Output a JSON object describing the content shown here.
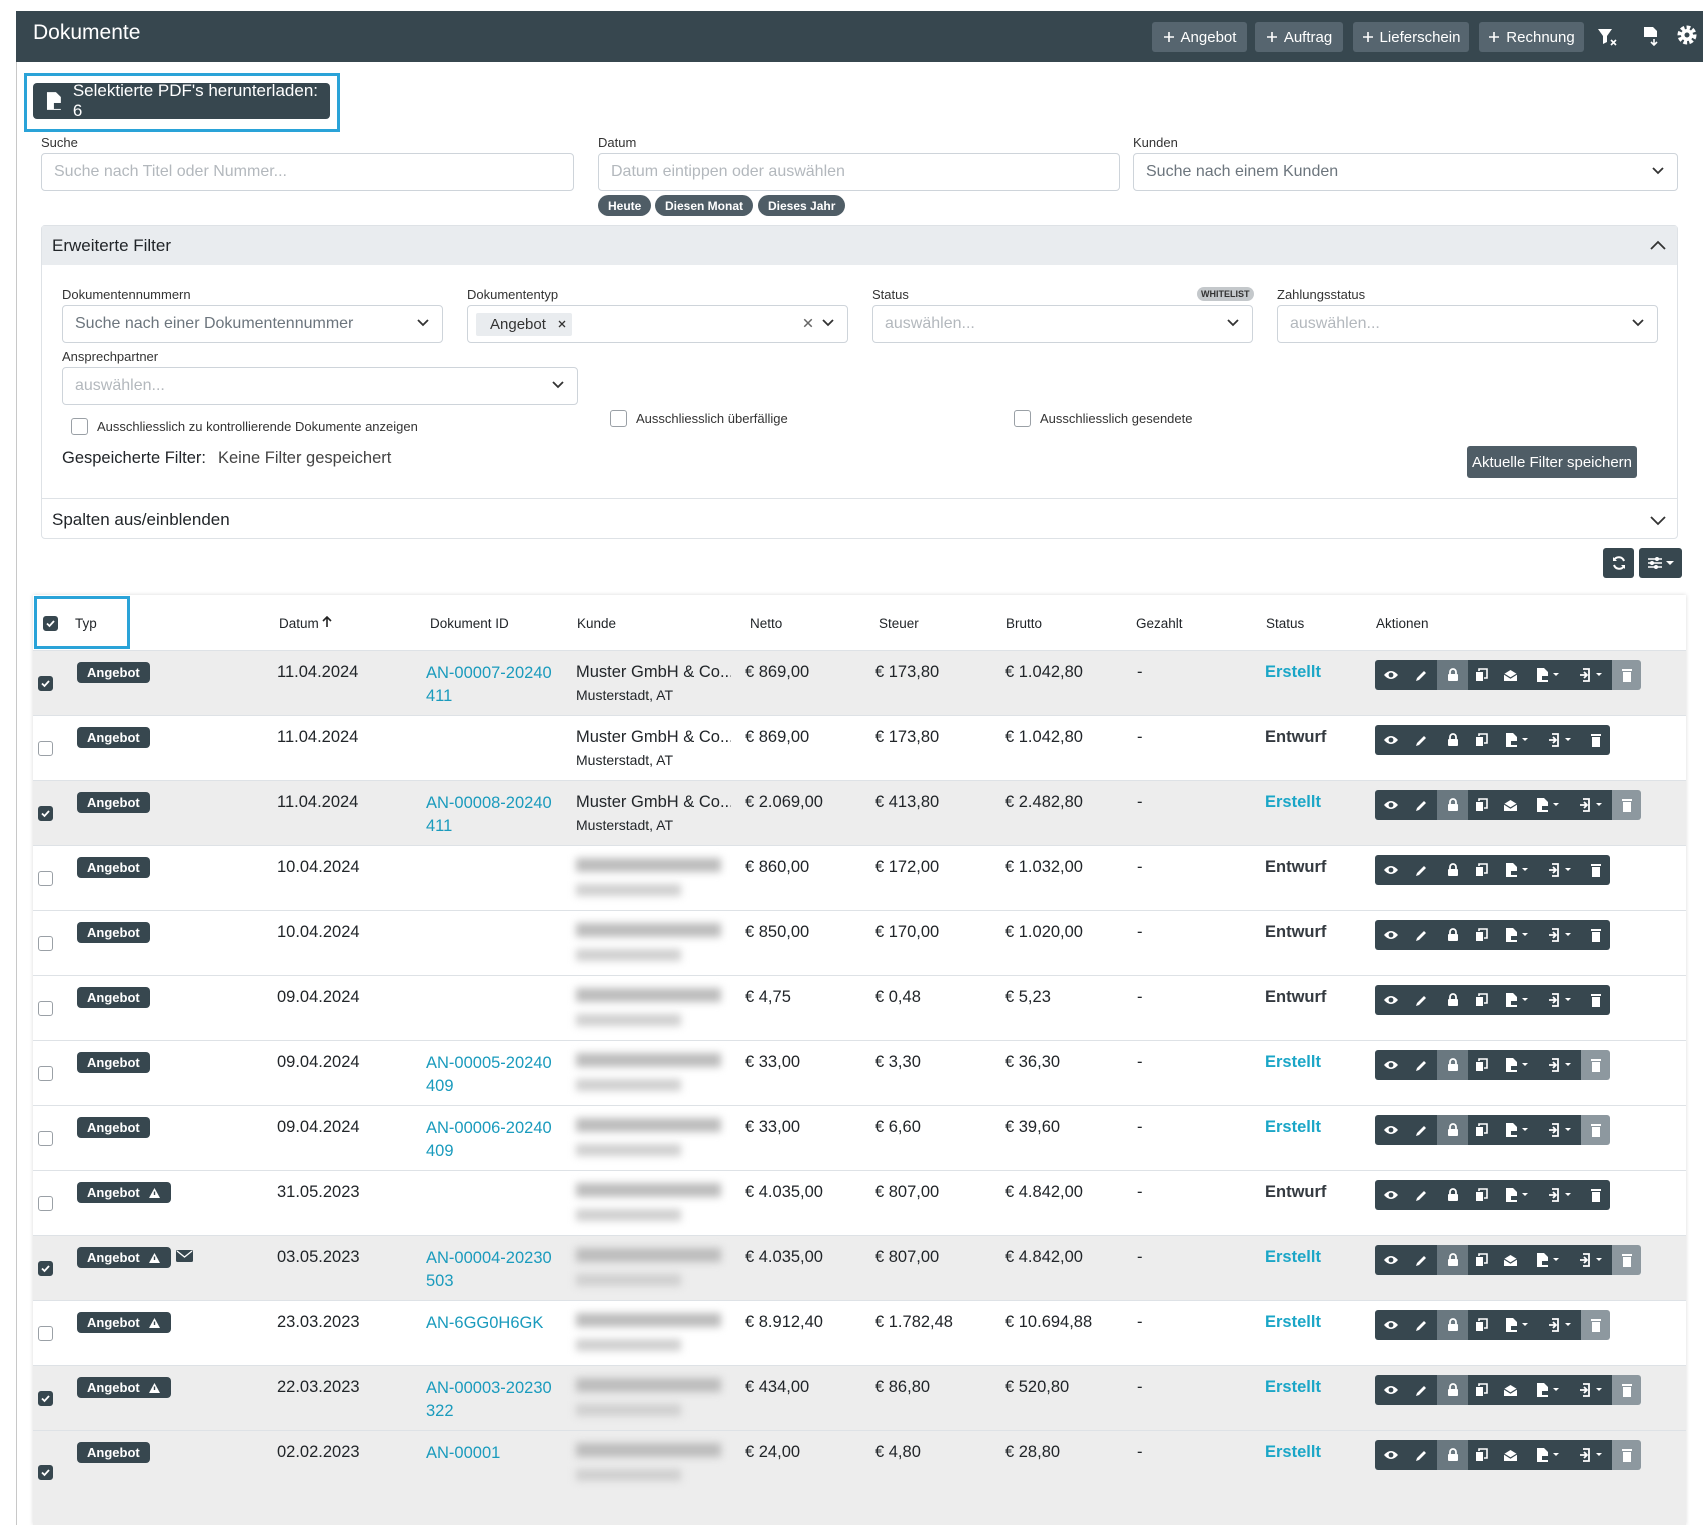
{
  "header": {
    "title": "Dokumente",
    "buttons": [
      "Angebot",
      "Auftrag",
      "Lieferschein",
      "Rechnung"
    ]
  },
  "download_button": "Selektierte PDF's herunterladen: 6",
  "filters": {
    "search": {
      "label": "Suche",
      "placeholder": "Suche nach Titel oder Nummer..."
    },
    "date": {
      "label": "Datum",
      "placeholder": "Datum eintippen oder auswählen",
      "quick": [
        "Heute",
        "Diesen Monat",
        "Dieses Jahr"
      ]
    },
    "customer": {
      "label": "Kunden",
      "placeholder": "Suche nach einem Kunden"
    }
  },
  "advanced": {
    "title": "Erweiterte Filter",
    "fields": [
      {
        "label": "Dokumentennummern",
        "placeholder": "Suche nach einer Dokumentennummer"
      },
      {
        "label": "Dokumententyp",
        "value": "Angebot"
      },
      {
        "label": "Status",
        "badge": "WHITELIST",
        "placeholder": "auswählen..."
      },
      {
        "label": "Zahlungsstatus",
        "placeholder": "auswählen..."
      },
      {
        "label": "Ansprechpartner",
        "placeholder": "auswählen..."
      }
    ],
    "checkboxes": [
      "Ausschliesslich zu kontrollierende Dokumente anzeigen",
      "Ausschliesslich überfällige",
      "Ausschliesslich gesendete"
    ],
    "saved_label": "Gespeicherte Filter:",
    "saved_value": "Keine Filter gespeichert",
    "save_button": "Aktuelle Filter speichern"
  },
  "columns_toggle": "Spalten aus/einblenden",
  "table": {
    "columns": [
      "Typ",
      "Datum",
      "Dokument ID",
      "Kunde",
      "Netto",
      "Steuer",
      "Brutto",
      "Gezahlt",
      "Status",
      "Aktionen"
    ],
    "rows": [
      {
        "checked": true,
        "type": "Angebot",
        "date": "11.04.2024",
        "doc_id": "AN-00007-20240411",
        "customer": "Muster GmbH & Co...",
        "city": "Musterstadt, AT",
        "netto": "€ 869,00",
        "steuer": "€ 173,80",
        "brutto": "€ 1.042,80",
        "paid": "-",
        "status": "Erstellt",
        "status_color": "#1ba6c7",
        "finalized": true
      },
      {
        "checked": false,
        "type": "Angebot",
        "date": "11.04.2024",
        "customer": "Muster GmbH & Co...",
        "city": "Musterstadt, AT",
        "netto": "€ 869,00",
        "steuer": "€ 173,80",
        "brutto": "€ 1.042,80",
        "paid": "-",
        "status": "Entwurf",
        "status_color": "#343a40",
        "finalized": false
      },
      {
        "checked": true,
        "type": "Angebot",
        "date": "11.04.2024",
        "doc_id": "AN-00008-20240411",
        "customer": "Muster GmbH & Co...",
        "city": "Musterstadt, AT",
        "netto": "€ 2.069,00",
        "steuer": "€ 413,80",
        "brutto": "€ 2.482,80",
        "paid": "-",
        "status": "Erstellt",
        "status_color": "#1ba6c7",
        "finalized": true
      },
      {
        "checked": false,
        "type": "Angebot",
        "date": "10.04.2024",
        "netto": "€ 860,00",
        "steuer": "€ 172,00",
        "brutto": "€ 1.032,00",
        "paid": "-",
        "status": "Entwurf",
        "status_color": "#343a40",
        "finalized": false
      },
      {
        "checked": false,
        "type": "Angebot",
        "date": "10.04.2024",
        "netto": "€ 850,00",
        "steuer": "€ 170,00",
        "brutto": "€ 1.020,00",
        "paid": "-",
        "status": "Entwurf",
        "status_color": "#343a40",
        "finalized": false
      },
      {
        "checked": false,
        "type": "Angebot",
        "date": "09.04.2024",
        "netto": "€ 4,75",
        "steuer": "€ 0,48",
        "brutto": "€ 5,23",
        "paid": "-",
        "status": "Entwurf",
        "status_color": "#343a40",
        "finalized": false
      },
      {
        "checked": false,
        "type": "Angebot",
        "date": "09.04.2024",
        "doc_id": "AN-00005-20240409",
        "netto": "€ 33,00",
        "steuer": "€ 3,30",
        "brutto": "€ 36,30",
        "paid": "-",
        "status": "Erstellt",
        "status_color": "#1ba6c7",
        "finalized": true
      },
      {
        "checked": false,
        "type": "Angebot",
        "date": "09.04.2024",
        "doc_id": "AN-00006-20240409",
        "netto": "€ 33,00",
        "steuer": "€ 6,60",
        "brutto": "€ 39,60",
        "paid": "-",
        "status": "Erstellt",
        "status_color": "#1ba6c7",
        "finalized": true
      },
      {
        "checked": false,
        "type": "Angebot",
        "warning": true,
        "date": "31.05.2023",
        "netto": "€ 4.035,00",
        "steuer": "€ 807,00",
        "brutto": "€ 4.842,00",
        "paid": "-",
        "status": "Entwurf",
        "status_color": "#343a40",
        "finalized": false
      },
      {
        "checked": true,
        "type": "Angebot",
        "warning": true,
        "mail": true,
        "date": "03.05.2023",
        "doc_id": "AN-00004-20230503",
        "netto": "€ 4.035,00",
        "steuer": "€ 807,00",
        "brutto": "€ 4.842,00",
        "paid": "-",
        "status": "Erstellt",
        "status_color": "#1ba6c7",
        "finalized": true
      },
      {
        "checked": false,
        "type": "Angebot",
        "warning": true,
        "date": "23.03.2023",
        "doc_id": "AN-6GG0H6GK",
        "netto": "€ 8.912,40",
        "steuer": "€ 1.782,48",
        "brutto": "€ 10.694,88",
        "paid": "-",
        "status": "Erstellt",
        "status_color": "#1ba6c7",
        "finalized": true
      },
      {
        "checked": true,
        "type": "Angebot",
        "warning": true,
        "date": "22.03.2023",
        "doc_id": "AN-00003-20230322",
        "netto": "€ 434,00",
        "steuer": "€ 86,80",
        "brutto": "€ 520,80",
        "paid": "-",
        "status": "Erstellt",
        "status_color": "#1ba6c7",
        "finalized": true
      },
      {
        "checked": true,
        "type": "Angebot",
        "date": "02.02.2023",
        "doc_id": "AN-00001",
        "netto": "€ 24,00",
        "steuer": "€ 4,80",
        "brutto": "€ 28,80",
        "paid": "-",
        "status": "Erstellt",
        "status_color": "#1ba6c7",
        "finalized": true
      }
    ]
  }
}
